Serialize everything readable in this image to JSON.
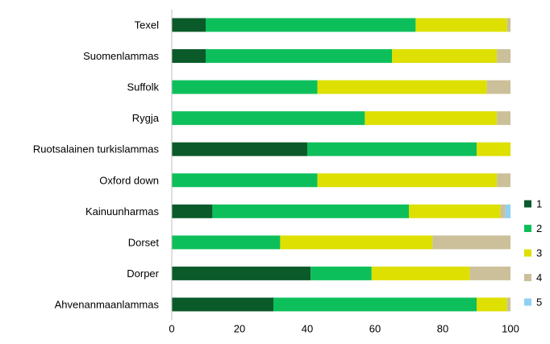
{
  "chart_data": {
    "type": "bar",
    "orientation": "horizontal",
    "stacked": true,
    "title": "",
    "xlabel": "",
    "ylabel": "",
    "xlim": [
      0,
      100
    ],
    "xticks": [
      "0",
      "20",
      "40",
      "60",
      "80",
      "100"
    ],
    "grid": false,
    "legend_position": "right",
    "categories": [
      "Texel",
      "Suomenlammas",
      "Suffolk",
      "Rygja",
      "Ruotsalainen turkislammas",
      "Oxford down",
      "Kainuunharmas",
      "Dorset",
      "Dorper",
      "Ahvenanmaanlammas"
    ],
    "series": [
      {
        "name": "1",
        "color": "#0b5a2a",
        "values": [
          10,
          10,
          0,
          0,
          40,
          0,
          12,
          0,
          41,
          30
        ]
      },
      {
        "name": "2",
        "color": "#0dbf5b",
        "values": [
          62,
          55,
          43,
          57,
          50,
          43,
          58,
          32,
          18,
          60
        ]
      },
      {
        "name": "3",
        "color": "#dde000",
        "values": [
          27,
          31,
          50,
          39,
          10,
          53,
          27,
          45,
          29,
          9
        ]
      },
      {
        "name": "4",
        "color": "#cbc09a",
        "values": [
          1,
          4,
          7,
          4,
          0,
          4,
          1.5,
          23,
          12,
          1
        ]
      },
      {
        "name": "5",
        "color": "#8fd1f2",
        "values": [
          0,
          0,
          0,
          0,
          0,
          0,
          1.5,
          0,
          0,
          0
        ]
      }
    ]
  }
}
